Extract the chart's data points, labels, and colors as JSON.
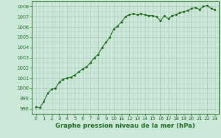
{
  "x": [
    0,
    0.5,
    1,
    1.5,
    2,
    2.5,
    3,
    3.5,
    4,
    4.5,
    5,
    5.5,
    6,
    6.5,
    7,
    7.5,
    8,
    8.5,
    9,
    9.5,
    10,
    10.5,
    11,
    11.5,
    12,
    12.5,
    13,
    13.5,
    14,
    14.5,
    15,
    15.5,
    16,
    16.5,
    17,
    17.5,
    18,
    18.5,
    19,
    19.5,
    20,
    20.5,
    21,
    21.5,
    22,
    22.5,
    23
  ],
  "y": [
    998.2,
    998.1,
    998.7,
    999.5,
    999.9,
    1000.0,
    1000.6,
    1000.9,
    1001.0,
    1001.1,
    1001.3,
    1001.6,
    1001.9,
    1002.1,
    1002.5,
    1003.0,
    1003.3,
    1004.0,
    1004.5,
    1005.0,
    1005.8,
    1006.1,
    1006.5,
    1007.0,
    1007.2,
    1007.3,
    1007.2,
    1007.3,
    1007.2,
    1007.1,
    1007.1,
    1007.0,
    1006.6,
    1007.1,
    1006.8,
    1007.1,
    1007.2,
    1007.4,
    1007.5,
    1007.6,
    1007.8,
    1007.9,
    1007.7,
    1008.0,
    1008.1,
    1007.8,
    1007.7
  ],
  "line_color": "#1e6b1e",
  "marker_color": "#1e6b1e",
  "bg_color": "#cce8d8",
  "grid_color": "#a8c8b8",
  "title": "Graphe pression niveau de la mer (hPa)",
  "xlabel_ticks": [
    0,
    1,
    2,
    3,
    4,
    5,
    6,
    7,
    8,
    9,
    10,
    11,
    12,
    13,
    14,
    15,
    16,
    17,
    18,
    19,
    20,
    21,
    22,
    23
  ],
  "ylim": [
    997.5,
    1008.5
  ],
  "yticks": [
    998,
    999,
    1000,
    1001,
    1002,
    1003,
    1004,
    1005,
    1006,
    1007,
    1008
  ],
  "xlim": [
    -0.5,
    23.5
  ],
  "tick_fontsize": 5.0,
  "title_fontsize": 6.5,
  "line_width": 0.8,
  "marker_size": 2.0
}
